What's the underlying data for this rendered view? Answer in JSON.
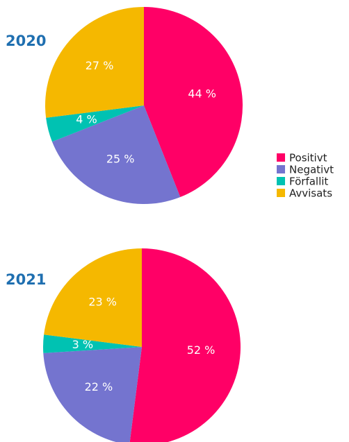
{
  "chart_data": [
    {
      "type": "pie",
      "title": "2020",
      "categories": [
        "Positivt",
        "Negativt",
        "Förfallit",
        "Avvisats"
      ],
      "values": [
        44,
        25,
        4,
        27
      ],
      "value_labels": [
        "44 %",
        "25 %",
        "4 %",
        "27 %"
      ],
      "colors": [
        "#ff0066",
        "#7474cf",
        "#00c2b2",
        "#f5b800"
      ]
    },
    {
      "type": "pie",
      "title": "2021",
      "categories": [
        "Positivt",
        "Negativt",
        "Förfallit",
        "Avvisats"
      ],
      "values": [
        52,
        22,
        3,
        23
      ],
      "value_labels": [
        "52 %",
        "22 %",
        "3 %",
        "23 %"
      ],
      "colors": [
        "#ff0066",
        "#7474cf",
        "#00c2b2",
        "#f5b800"
      ]
    }
  ]
}
